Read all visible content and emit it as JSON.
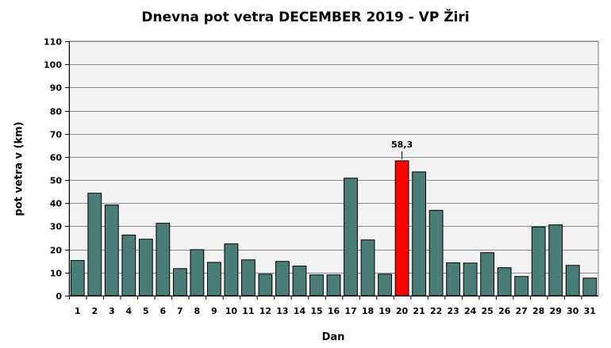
{
  "chart_data": {
    "type": "bar",
    "title": "Dnevna pot vetra DECEMBER 2019 - VP Žiri",
    "xlabel": "Dan",
    "ylabel": "pot vetra  v (km)",
    "ylim": [
      0,
      110
    ],
    "yticks": [
      0,
      10,
      20,
      30,
      40,
      50,
      60,
      70,
      80,
      90,
      100,
      110
    ],
    "grid": true,
    "categories": [
      "1",
      "2",
      "3",
      "4",
      "5",
      "6",
      "7",
      "8",
      "9",
      "10",
      "11",
      "12",
      "13",
      "14",
      "15",
      "16",
      "17",
      "18",
      "19",
      "20",
      "21",
      "22",
      "23",
      "24",
      "25",
      "26",
      "27",
      "28",
      "29",
      "30",
      "31"
    ],
    "values": [
      15.2,
      44.3,
      39.2,
      26.2,
      24.4,
      31.3,
      11.7,
      19.9,
      14.4,
      22.4,
      15.5,
      9.3,
      14.8,
      12.8,
      9.0,
      9.0,
      50.8,
      24.1,
      9.3,
      58.3,
      53.5,
      36.9,
      14.2,
      14.1,
      18.6,
      12.1,
      8.3,
      29.7,
      30.6,
      13.1,
      7.6
    ],
    "bar_color": "#4a7c78",
    "highlight": {
      "index": 19,
      "color": "#ff0000",
      "label": "58,3"
    }
  }
}
